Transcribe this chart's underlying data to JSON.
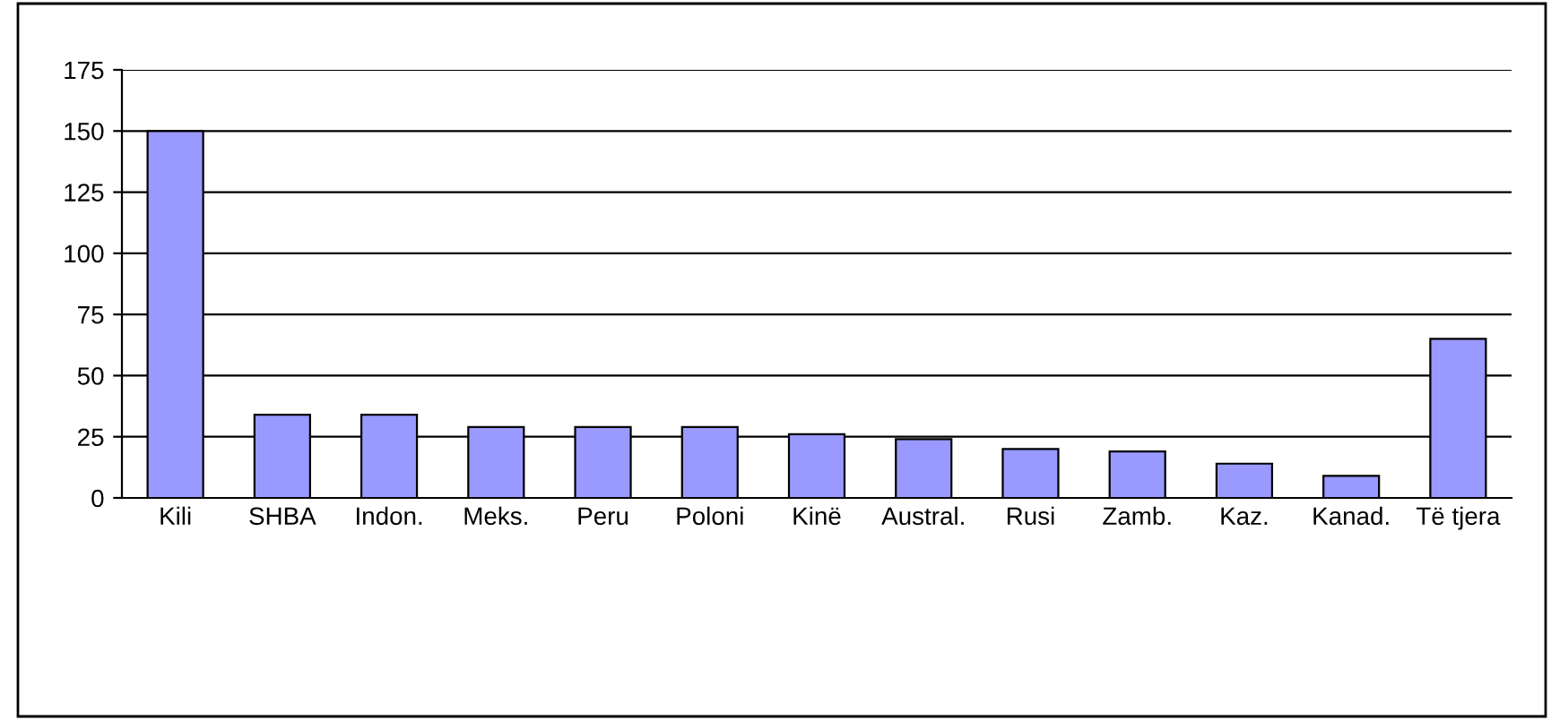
{
  "chart_data": {
    "type": "bar",
    "categories": [
      "Kili",
      "SHBA",
      "Indon.",
      "Meks.",
      "Peru",
      "Poloni",
      "Kinë",
      "Austral.",
      "Rusi",
      "Zamb.",
      "Kaz.",
      "Kanad.",
      "Të tjera"
    ],
    "values": [
      150,
      34,
      34,
      29,
      29,
      29,
      26,
      24,
      20,
      19,
      14,
      9,
      65
    ],
    "color": "#9999ff",
    "ylim": [
      0,
      175
    ],
    "yticks": [
      0,
      25,
      50,
      75,
      100,
      125,
      150,
      175
    ],
    "grid": "y",
    "legend": false
  }
}
